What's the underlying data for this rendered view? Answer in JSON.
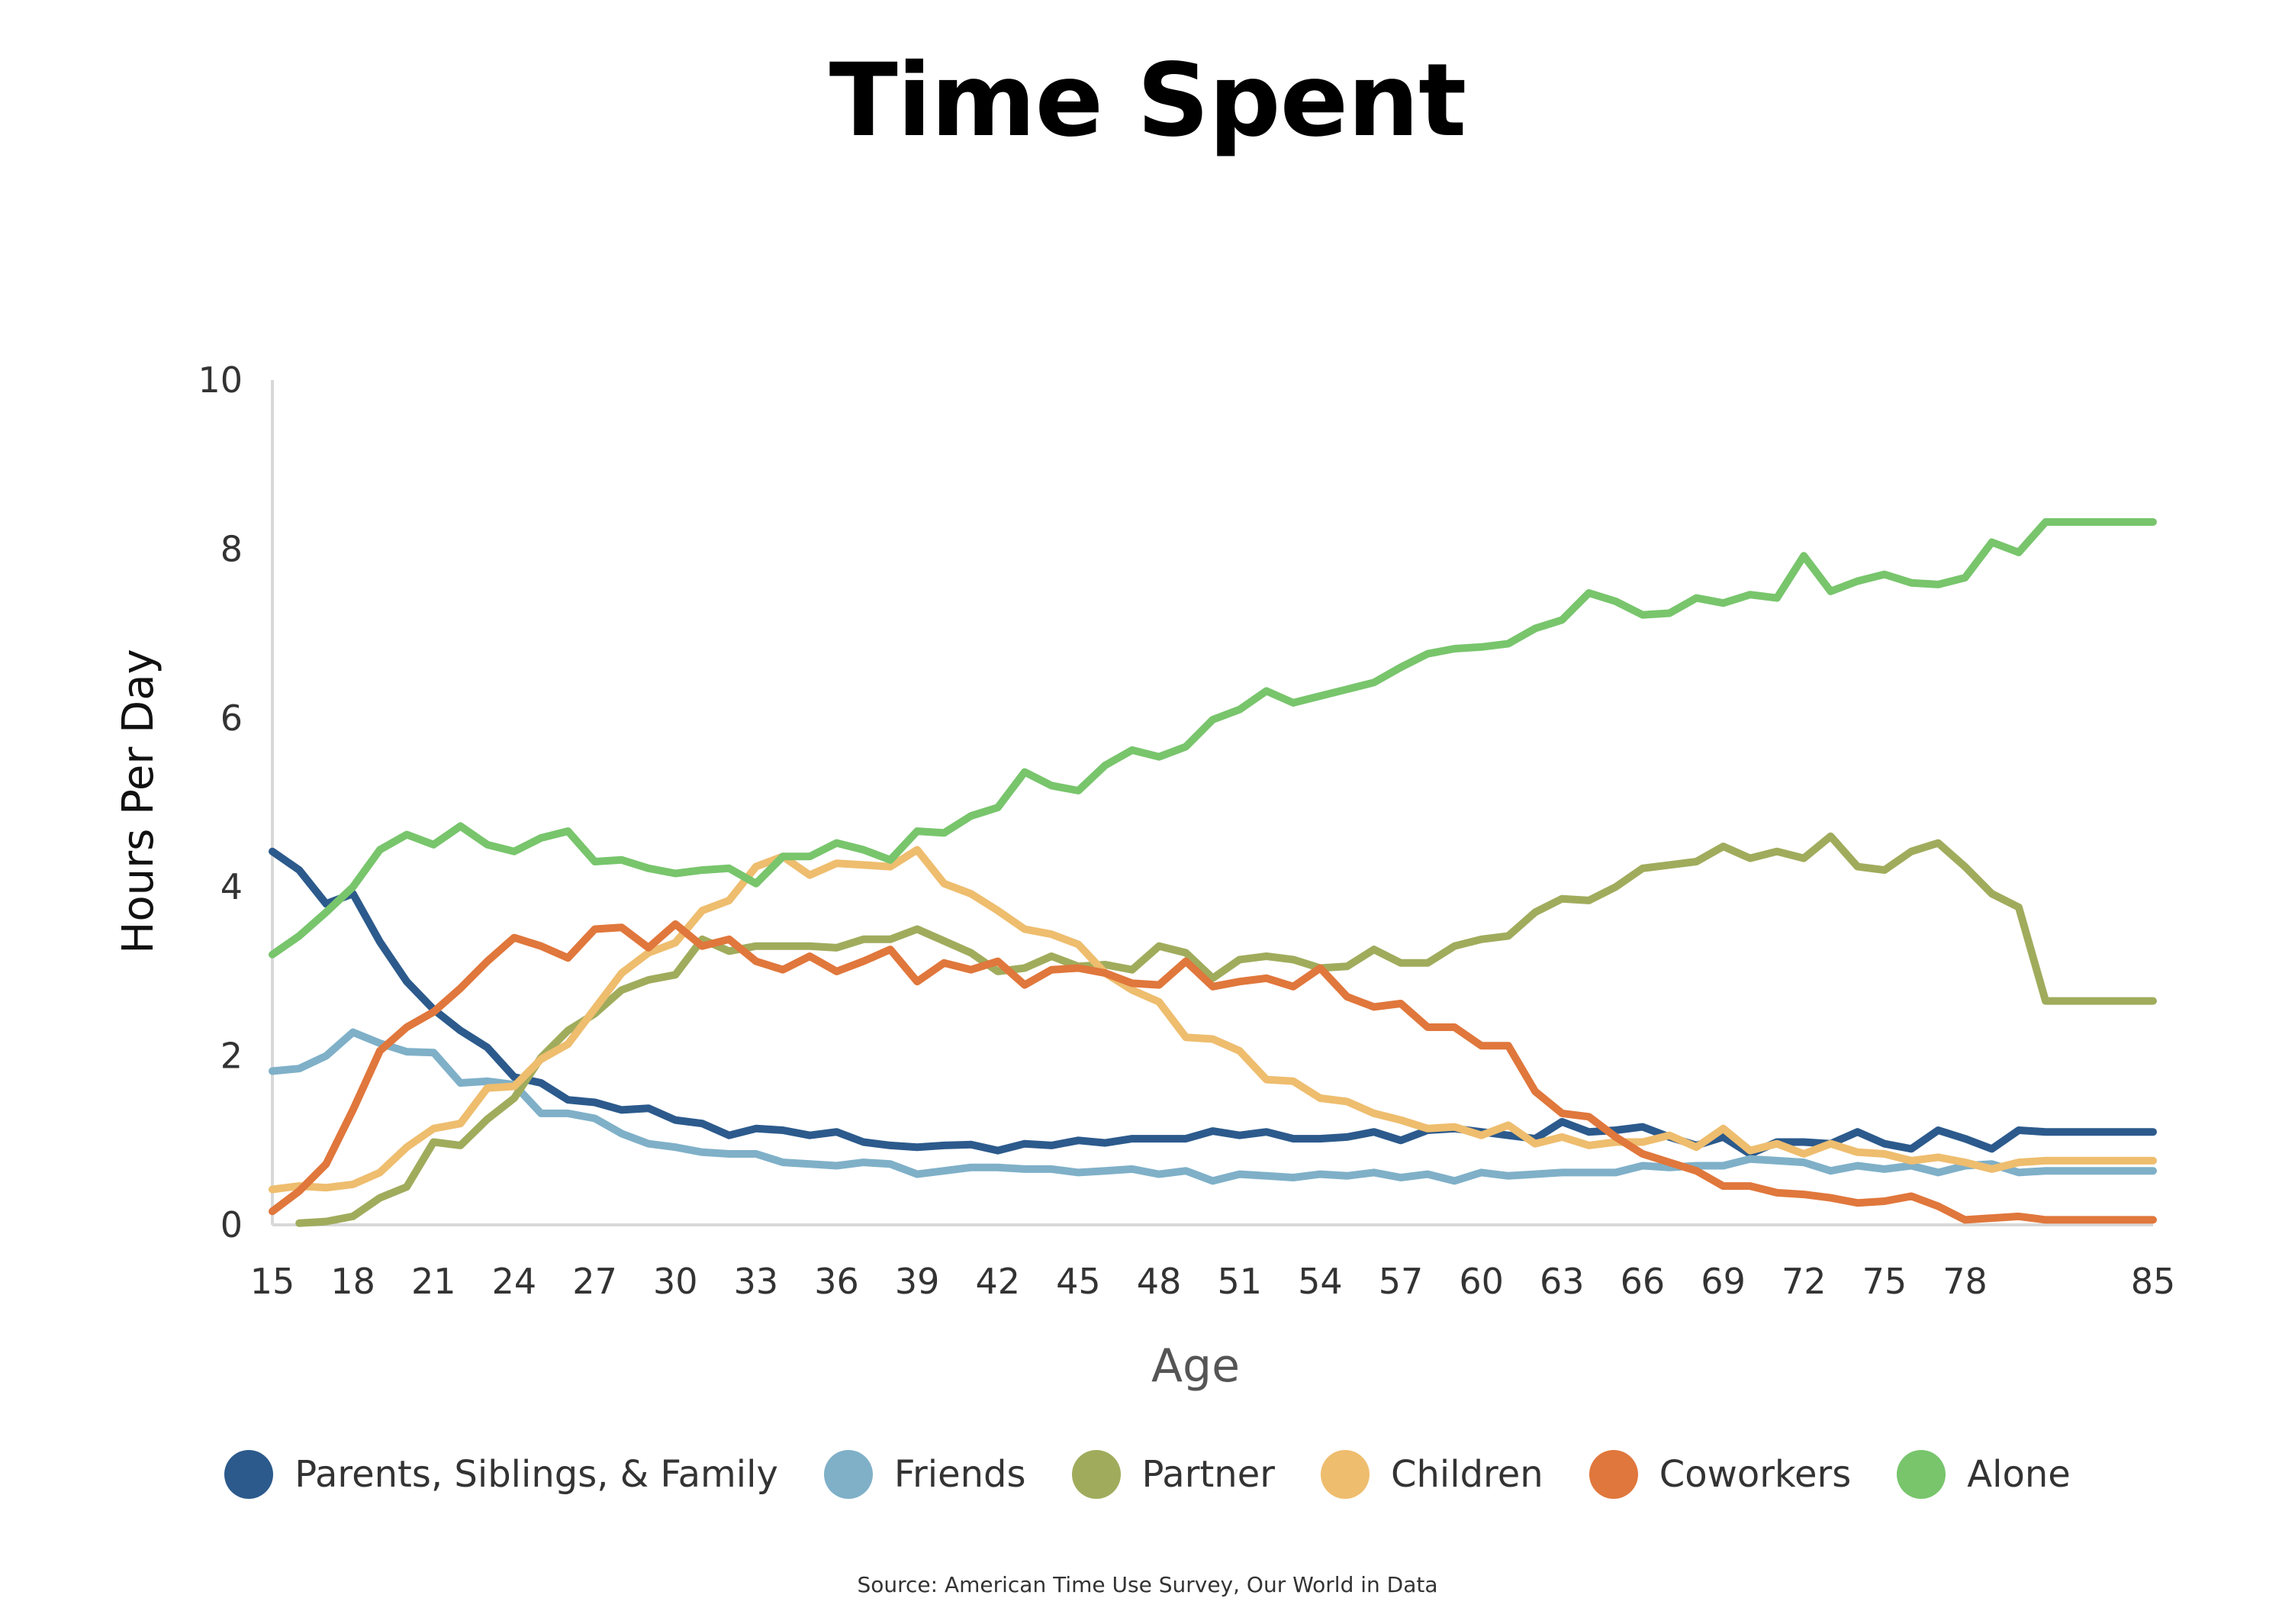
{
  "chart_data": {
    "type": "line",
    "title": "Time Spent",
    "xlabel": "Age",
    "ylabel": "Hours Per Day",
    "xlim": [
      15,
      85
    ],
    "ylim": [
      0,
      10
    ],
    "xticks": [
      15,
      18,
      21,
      24,
      27,
      30,
      33,
      36,
      39,
      42,
      45,
      48,
      51,
      54,
      57,
      60,
      63,
      66,
      69,
      72,
      75,
      78,
      85
    ],
    "yticks": [
      0,
      2,
      4,
      6,
      8,
      10
    ],
    "grid": false,
    "legend_position": "bottom",
    "x": [
      15,
      16,
      17,
      18,
      19,
      20,
      21,
      22,
      23,
      24,
      25,
      26,
      27,
      28,
      29,
      30,
      31,
      32,
      33,
      34,
      35,
      36,
      37,
      38,
      39,
      40,
      41,
      42,
      43,
      44,
      45,
      46,
      47,
      48,
      49,
      50,
      51,
      52,
      53,
      54,
      55,
      56,
      57,
      58,
      59,
      60,
      61,
      62,
      63,
      64,
      65,
      66,
      67,
      68,
      69,
      70,
      71,
      72,
      73,
      74,
      75,
      76,
      77,
      78,
      79,
      80,
      81,
      82,
      83,
      84,
      85
    ],
    "series": [
      {
        "name": "Parents, Siblings, & Family",
        "color": "#2c5a8c",
        "values": [
          4.42,
          4.2,
          3.8,
          3.92,
          3.35,
          2.88,
          2.55,
          2.3,
          2.1,
          1.75,
          1.68,
          1.48,
          1.45,
          1.36,
          1.38,
          1.24,
          1.2,
          1.06,
          1.14,
          1.12,
          1.06,
          1.1,
          0.98,
          0.94,
          0.92,
          0.94,
          0.95,
          0.88,
          0.96,
          0.94,
          1.0,
          0.97,
          1.02,
          1.02,
          1.02,
          1.11,
          1.06,
          1.1,
          1.02,
          1.02,
          1.04,
          1.1,
          1.0,
          1.12,
          1.14,
          1.1,
          1.06,
          1.02,
          1.22,
          1.1,
          1.12,
          1.16,
          1.04,
          0.94,
          1.04,
          0.84,
          0.98,
          0.98,
          0.96,
          1.1,
          0.96,
          0.9,
          1.12,
          1.02,
          0.9,
          1.12,
          1.1,
          1.1,
          1.1,
          1.1,
          1.1
        ]
      },
      {
        "name": "Friends",
        "color": "#7fb0c8",
        "values": [
          1.82,
          1.85,
          2.0,
          2.28,
          2.15,
          2.05,
          2.04,
          1.68,
          1.7,
          1.66,
          1.32,
          1.32,
          1.26,
          1.08,
          0.96,
          0.92,
          0.86,
          0.84,
          0.84,
          0.74,
          0.72,
          0.7,
          0.74,
          0.72,
          0.6,
          0.64,
          0.68,
          0.68,
          0.66,
          0.66,
          0.62,
          0.64,
          0.66,
          0.6,
          0.64,
          0.52,
          0.6,
          0.58,
          0.56,
          0.6,
          0.58,
          0.62,
          0.56,
          0.6,
          0.52,
          0.62,
          0.58,
          0.6,
          0.62,
          0.62,
          0.62,
          0.7,
          0.68,
          0.7,
          0.7,
          0.78,
          0.76,
          0.74,
          0.64,
          0.7,
          0.66,
          0.7,
          0.62,
          0.7,
          0.72,
          0.62,
          0.64,
          0.64,
          0.64,
          0.64,
          0.64
        ]
      },
      {
        "name": "Partner",
        "color": "#a0ac5c",
        "values": [
          null,
          0.02,
          0.04,
          0.1,
          0.32,
          0.45,
          0.98,
          0.94,
          1.25,
          1.5,
          1.98,
          2.3,
          2.5,
          2.78,
          2.9,
          2.96,
          3.38,
          3.24,
          3.3,
          3.3,
          3.3,
          3.28,
          3.38,
          3.38,
          3.5,
          3.36,
          3.22,
          3.0,
          3.04,
          3.18,
          3.06,
          3.08,
          3.02,
          3.3,
          3.22,
          2.92,
          3.14,
          3.18,
          3.14,
          3.04,
          3.06,
          3.26,
          3.1,
          3.1,
          3.3,
          3.38,
          3.42,
          3.7,
          3.86,
          3.84,
          4.0,
          4.22,
          4.26,
          4.3,
          4.48,
          4.34,
          4.42,
          4.34,
          4.6,
          4.24,
          4.2,
          4.42,
          4.52,
          4.24,
          3.92,
          3.76,
          2.65,
          2.65,
          2.65,
          2.65,
          2.65
        ]
      },
      {
        "name": "Children",
        "color": "#eebd6e",
        "values": [
          0.42,
          0.46,
          0.44,
          0.48,
          0.62,
          0.92,
          1.14,
          1.2,
          1.62,
          1.64,
          1.96,
          2.14,
          2.56,
          2.98,
          3.22,
          3.34,
          3.72,
          3.84,
          4.24,
          4.36,
          4.14,
          4.28,
          4.26,
          4.24,
          4.44,
          4.04,
          3.92,
          3.72,
          3.5,
          3.44,
          3.32,
          2.98,
          2.78,
          2.64,
          2.22,
          2.2,
          2.06,
          1.72,
          1.7,
          1.5,
          1.46,
          1.32,
          1.24,
          1.14,
          1.16,
          1.06,
          1.18,
          0.96,
          1.04,
          0.94,
          0.98,
          0.98,
          1.06,
          0.92,
          1.14,
          0.88,
          0.96,
          0.84,
          0.96,
          0.86,
          0.84,
          0.76,
          0.8,
          0.74,
          0.66,
          0.74,
          0.76,
          0.76,
          0.76,
          0.76,
          0.76
        ]
      },
      {
        "name": "Coworkers",
        "color": "#e0773c",
        "values": [
          0.16,
          0.4,
          0.72,
          1.36,
          2.06,
          2.34,
          2.52,
          2.8,
          3.12,
          3.4,
          3.3,
          3.16,
          3.5,
          3.52,
          3.28,
          3.56,
          3.3,
          3.38,
          3.12,
          3.02,
          3.18,
          3.0,
          3.12,
          3.26,
          2.88,
          3.1,
          3.02,
          3.12,
          2.84,
          3.02,
          3.04,
          2.98,
          2.86,
          2.84,
          3.12,
          2.82,
          2.88,
          2.92,
          2.82,
          3.04,
          2.7,
          2.58,
          2.62,
          2.34,
          2.34,
          2.12,
          2.12,
          1.58,
          1.32,
          1.28,
          1.04,
          0.84,
          0.74,
          0.64,
          0.46,
          0.46,
          0.38,
          0.36,
          0.32,
          0.26,
          0.28,
          0.34,
          0.22,
          0.06,
          0.08,
          0.1,
          0.06,
          0.06,
          0.06,
          0.06,
          0.06
        ]
      },
      {
        "name": "Alone",
        "color": "#78c56c",
        "values": [
          3.2,
          3.42,
          3.7,
          4.0,
          4.44,
          4.62,
          4.5,
          4.72,
          4.5,
          4.42,
          4.58,
          4.66,
          4.3,
          4.32,
          4.22,
          4.16,
          4.2,
          4.22,
          4.04,
          4.36,
          4.36,
          4.52,
          4.44,
          4.32,
          4.66,
          4.64,
          4.84,
          4.94,
          5.36,
          5.2,
          5.14,
          5.44,
          5.62,
          5.54,
          5.66,
          5.98,
          6.1,
          6.32,
          6.18,
          6.26,
          6.34,
          6.42,
          6.6,
          6.76,
          6.82,
          6.84,
          6.88,
          7.06,
          7.16,
          7.48,
          7.38,
          7.22,
          7.24,
          7.42,
          7.36,
          7.46,
          7.42,
          7.92,
          7.5,
          7.62,
          7.7,
          7.6,
          7.58,
          7.66,
          8.08,
          7.96,
          8.32,
          8.32,
          8.32,
          8.32,
          8.32
        ]
      }
    ],
    "source": "Source: American Time Use Survey, Our World in Data"
  }
}
